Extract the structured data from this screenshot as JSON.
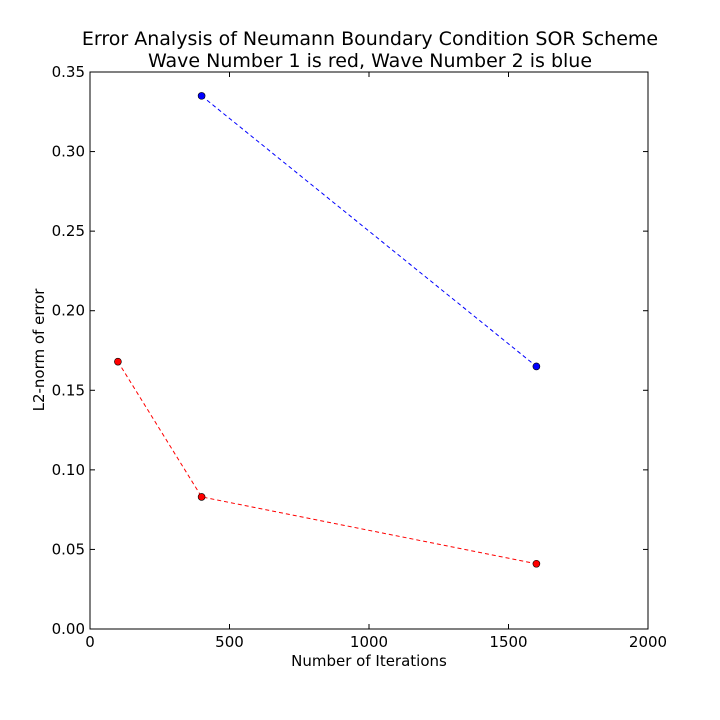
{
  "chart_data": {
    "type": "line",
    "title": "Error Analysis of Neumann Boundary Condition SOR Scheme",
    "subtitle": "Wave Number 1 is red, Wave Number 2 is blue",
    "xlabel": "Number of Iterations",
    "ylabel": "L2-norm of error",
    "xlim": [
      0,
      2000
    ],
    "ylim": [
      0,
      0.35
    ],
    "xticks": [
      "0",
      "500",
      "1000",
      "1500",
      "2000"
    ],
    "yticks": [
      "0.00",
      "0.05",
      "0.10",
      "0.15",
      "0.20",
      "0.25",
      "0.30",
      "0.35"
    ],
    "grid": false,
    "series": [
      {
        "color": "#ff0000",
        "line_style": "dashed",
        "marker": "circle",
        "x": [
          100,
          400,
          1600
        ],
        "y": [
          0.168,
          0.083,
          0.041
        ]
      },
      {
        "color": "#0000ff",
        "line_style": "dashed",
        "marker": "circle",
        "x": [
          400,
          1600
        ],
        "y": [
          0.335,
          0.165
        ]
      }
    ]
  }
}
